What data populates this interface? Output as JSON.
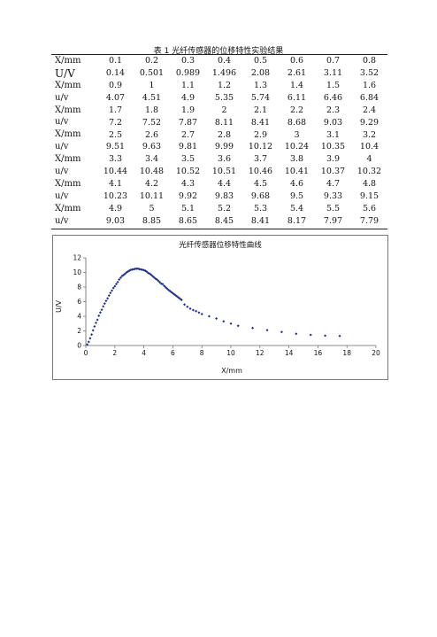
{
  "table": {
    "title": "表 1 光纤传感器的位移特性实验结果",
    "rows": [
      {
        "header": "X/mm",
        "values": [
          "0.1",
          "0.2",
          "0.3",
          "0.4",
          "0.5",
          "0.6",
          "0.7",
          "0.8"
        ]
      },
      {
        "header": "U/V",
        "values": [
          "0.14",
          "0.501",
          "0.989",
          "1.496",
          "2.08",
          "2.61",
          "3.11",
          "3.52"
        ]
      },
      {
        "header": "X/mm",
        "values": [
          "0.9",
          "1",
          "1.1",
          "1.2",
          "1.3",
          "1.4",
          "1.5",
          "1.6"
        ]
      },
      {
        "header": "u/v",
        "values": [
          "4.07",
          "4.51",
          "4.9",
          "5.35",
          "5.74",
          "6.11",
          "6.46",
          "6.84"
        ]
      },
      {
        "header": "X/mm",
        "values": [
          "1.7",
          "1.8",
          "1.9",
          "2",
          "2.1",
          "2.2",
          "2.3",
          "2.4"
        ]
      },
      {
        "header": "u/v",
        "values": [
          "7.2",
          "7.52",
          "7.87",
          "8.11",
          "8.41",
          "8.68",
          "9.03",
          "9.29"
        ]
      },
      {
        "header": "X/mm",
        "values": [
          "2.5",
          "2.6",
          "2.7",
          "2.8",
          "2.9",
          "3",
          "3.1",
          "3.2"
        ]
      },
      {
        "header": "u/v",
        "values": [
          "9.51",
          "9.63",
          "9.81",
          "9.99",
          "10.12",
          "10.24",
          "10.35",
          "10.4"
        ]
      },
      {
        "header": "X/mm",
        "values": [
          "3.3",
          "3.4",
          "3.5",
          "3.6",
          "3.7",
          "3.8",
          "3.9",
          "4"
        ]
      },
      {
        "header": "u/v",
        "values": [
          "10.44",
          "10.48",
          "10.52",
          "10.51",
          "10.46",
          "10.41",
          "10.37",
          "10.32"
        ]
      },
      {
        "header": "X/mm",
        "values": [
          "4.1",
          "4.2",
          "4.3",
          "4.4",
          "4.5",
          "4.6",
          "4.7",
          "4.8"
        ]
      },
      {
        "header": "u/v",
        "values": [
          "10.23",
          "10.11",
          "9.92",
          "9.83",
          "9.68",
          "9.5",
          "9.33",
          "9.15"
        ]
      },
      {
        "header": "X/mm",
        "values": [
          "4.9",
          "5",
          "5.1",
          "5.2",
          "5.3",
          "5.4",
          "5.5",
          "5.6"
        ]
      },
      {
        "header": "u/v",
        "values": [
          "9.03",
          "8.85",
          "8.65",
          "8.45",
          "8.41",
          "8.17",
          "7.97",
          "7.79"
        ]
      }
    ]
  },
  "chart_data": {
    "type": "scatter",
    "title": "光纤传感器位移特性曲线",
    "xlabel": "X/mm",
    "ylabel": "U/V",
    "xlim": [
      0,
      20
    ],
    "ylim": [
      0,
      12
    ],
    "xticks": [
      0,
      2,
      4,
      6,
      8,
      10,
      12,
      14,
      16,
      18,
      20
    ],
    "yticks": [
      0,
      2,
      4,
      6,
      8,
      10,
      12
    ],
    "grid": false,
    "legend": "none",
    "marker_color": "#1f2f8f",
    "x": [
      0.1,
      0.2,
      0.3,
      0.4,
      0.5,
      0.6,
      0.7,
      0.8,
      0.9,
      1.0,
      1.1,
      1.2,
      1.3,
      1.4,
      1.5,
      1.6,
      1.7,
      1.8,
      1.9,
      2.0,
      2.1,
      2.2,
      2.3,
      2.4,
      2.5,
      2.6,
      2.7,
      2.8,
      2.9,
      3.0,
      3.1,
      3.2,
      3.3,
      3.4,
      3.5,
      3.6,
      3.7,
      3.8,
      3.9,
      4.0,
      4.1,
      4.2,
      4.3,
      4.4,
      4.5,
      4.6,
      4.7,
      4.8,
      4.9,
      5.0,
      5.1,
      5.2,
      5.3,
      5.4,
      5.5,
      5.6,
      5.7,
      5.8,
      5.9,
      6.0,
      6.1,
      6.2,
      6.3,
      6.4,
      6.5,
      6.6,
      6.8,
      7.0,
      7.2,
      7.4,
      7.6,
      7.8,
      8.0,
      8.5,
      9.0,
      9.5,
      10.0,
      10.5,
      11.5,
      12.5,
      13.5,
      14.5,
      15.5,
      16.5,
      17.5
    ],
    "y": [
      0.14,
      0.501,
      0.989,
      1.496,
      2.08,
      2.61,
      3.11,
      3.52,
      4.07,
      4.51,
      4.9,
      5.35,
      5.74,
      6.11,
      6.46,
      6.84,
      7.2,
      7.52,
      7.87,
      8.11,
      8.41,
      8.68,
      9.03,
      9.29,
      9.51,
      9.63,
      9.81,
      9.99,
      10.12,
      10.24,
      10.35,
      10.4,
      10.44,
      10.48,
      10.52,
      10.51,
      10.46,
      10.41,
      10.37,
      10.32,
      10.23,
      10.11,
      9.92,
      9.83,
      9.68,
      9.5,
      9.33,
      9.15,
      9.03,
      8.85,
      8.65,
      8.45,
      8.41,
      8.17,
      7.97,
      7.79,
      7.6,
      7.45,
      7.3,
      7.15,
      7.0,
      6.85,
      6.7,
      6.55,
      6.4,
      6.25,
      5.6,
      5.3,
      5.05,
      4.85,
      4.7,
      4.5,
      4.3,
      4.0,
      3.7,
      3.3,
      3.0,
      2.7,
      2.4,
      2.1,
      1.85,
      1.6,
      1.45,
      1.35,
      1.3
    ]
  }
}
